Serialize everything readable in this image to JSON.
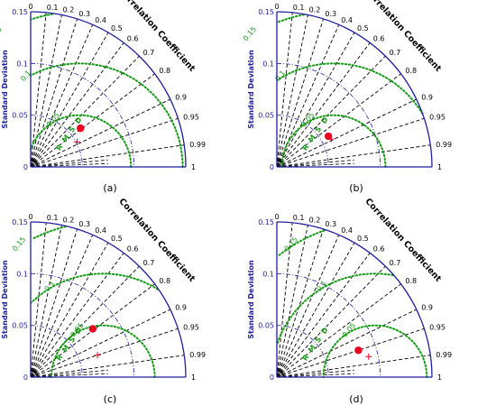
{
  "figure": {
    "ylabel": "Standard Deviation",
    "corr_title": "Correlation Coefficient",
    "rmsd_label": "R M S D"
  },
  "chart_data": [
    {
      "type": "taylor",
      "caption": "(a)",
      "std_ticks": [
        "0",
        "0.05",
        "0.1",
        "0.15"
      ],
      "corr_ticks": [
        "0",
        "0.1",
        "0.2",
        "0.3",
        "0.4",
        "0.5",
        "0.6",
        "0.7",
        "0.8",
        "0.9",
        "0.95",
        "0.99",
        "1"
      ],
      "rmsd_labels": [
        "0.05",
        "0.1",
        "0.15"
      ],
      "ref_std": 0.047,
      "ylim": [
        0,
        0.15
      ],
      "points": [
        {
          "kind": "model",
          "std": 0.061,
          "corr": 0.79,
          "color": "#e8001c"
        },
        {
          "kind": "reference",
          "std": 0.051,
          "corr": 0.88,
          "color": "#e8001c"
        }
      ]
    },
    {
      "type": "taylor",
      "caption": "(b)",
      "std_ticks": [
        "0",
        "0.05",
        "0.1",
        "0.15"
      ],
      "corr_ticks": [
        "0",
        "0.1",
        "0.2",
        "0.3",
        "0.4",
        "0.5",
        "0.6",
        "0.7",
        "0.8",
        "0.9",
        "0.95",
        "0.99",
        "1"
      ],
      "rmsd_labels": [
        "0.05",
        "0.1",
        "0.15"
      ],
      "ref_std": 0.055,
      "ylim": [
        0,
        0.15
      ],
      "points": [
        {
          "kind": "model",
          "std": 0.058,
          "corr": 0.86,
          "color": "#e8001c"
        },
        {
          "kind": "reference",
          "std": 0.059,
          "corr": 0.89,
          "color": "#e8001c"
        }
      ]
    },
    {
      "type": "taylor",
      "caption": "(c)",
      "std_ticks": [
        "0",
        "0.05",
        "0.1",
        "0.15"
      ],
      "corr_ticks": [
        "0",
        "0.1",
        "0.2",
        "0.3",
        "0.4",
        "0.5",
        "0.6",
        "0.7",
        "0.8",
        "0.9",
        "0.95",
        "0.99",
        "1"
      ],
      "rmsd_labels": [
        "0.05",
        "0.1",
        "0.15"
      ],
      "ref_std": 0.07,
      "ylim": [
        0,
        0.15
      ],
      "points": [
        {
          "kind": "model",
          "std": 0.076,
          "corr": 0.79,
          "color": "#e8001c"
        },
        {
          "kind": "reference",
          "std": 0.068,
          "corr": 0.95,
          "color": "#e8001c"
        }
      ]
    },
    {
      "type": "taylor",
      "caption": "(d)",
      "std_ticks": [
        "0",
        "0.05",
        "0.1",
        "0.15"
      ],
      "corr_ticks": [
        "0",
        "0.1",
        "0.2",
        "0.3",
        "0.4",
        "0.5",
        "0.6",
        "0.7",
        "0.8",
        "0.9",
        "0.95",
        "0.99",
        "1"
      ],
      "rmsd_labels": [
        "0.05",
        "0.1",
        "0.15"
      ],
      "ref_std": 0.095,
      "ylim": [
        0,
        0.15
      ],
      "points": [
        {
          "kind": "model",
          "std": 0.083,
          "corr": 0.95,
          "color": "#e8001c"
        },
        {
          "kind": "reference",
          "std": 0.091,
          "corr": 0.976,
          "color": "#e8001c"
        }
      ]
    }
  ],
  "colors": {
    "axis": "#1f1f9f",
    "ref_arc": "#1f1f9f",
    "rmsd": "#159a15",
    "corr_lines": "#000000",
    "marker": "#e8001c"
  }
}
